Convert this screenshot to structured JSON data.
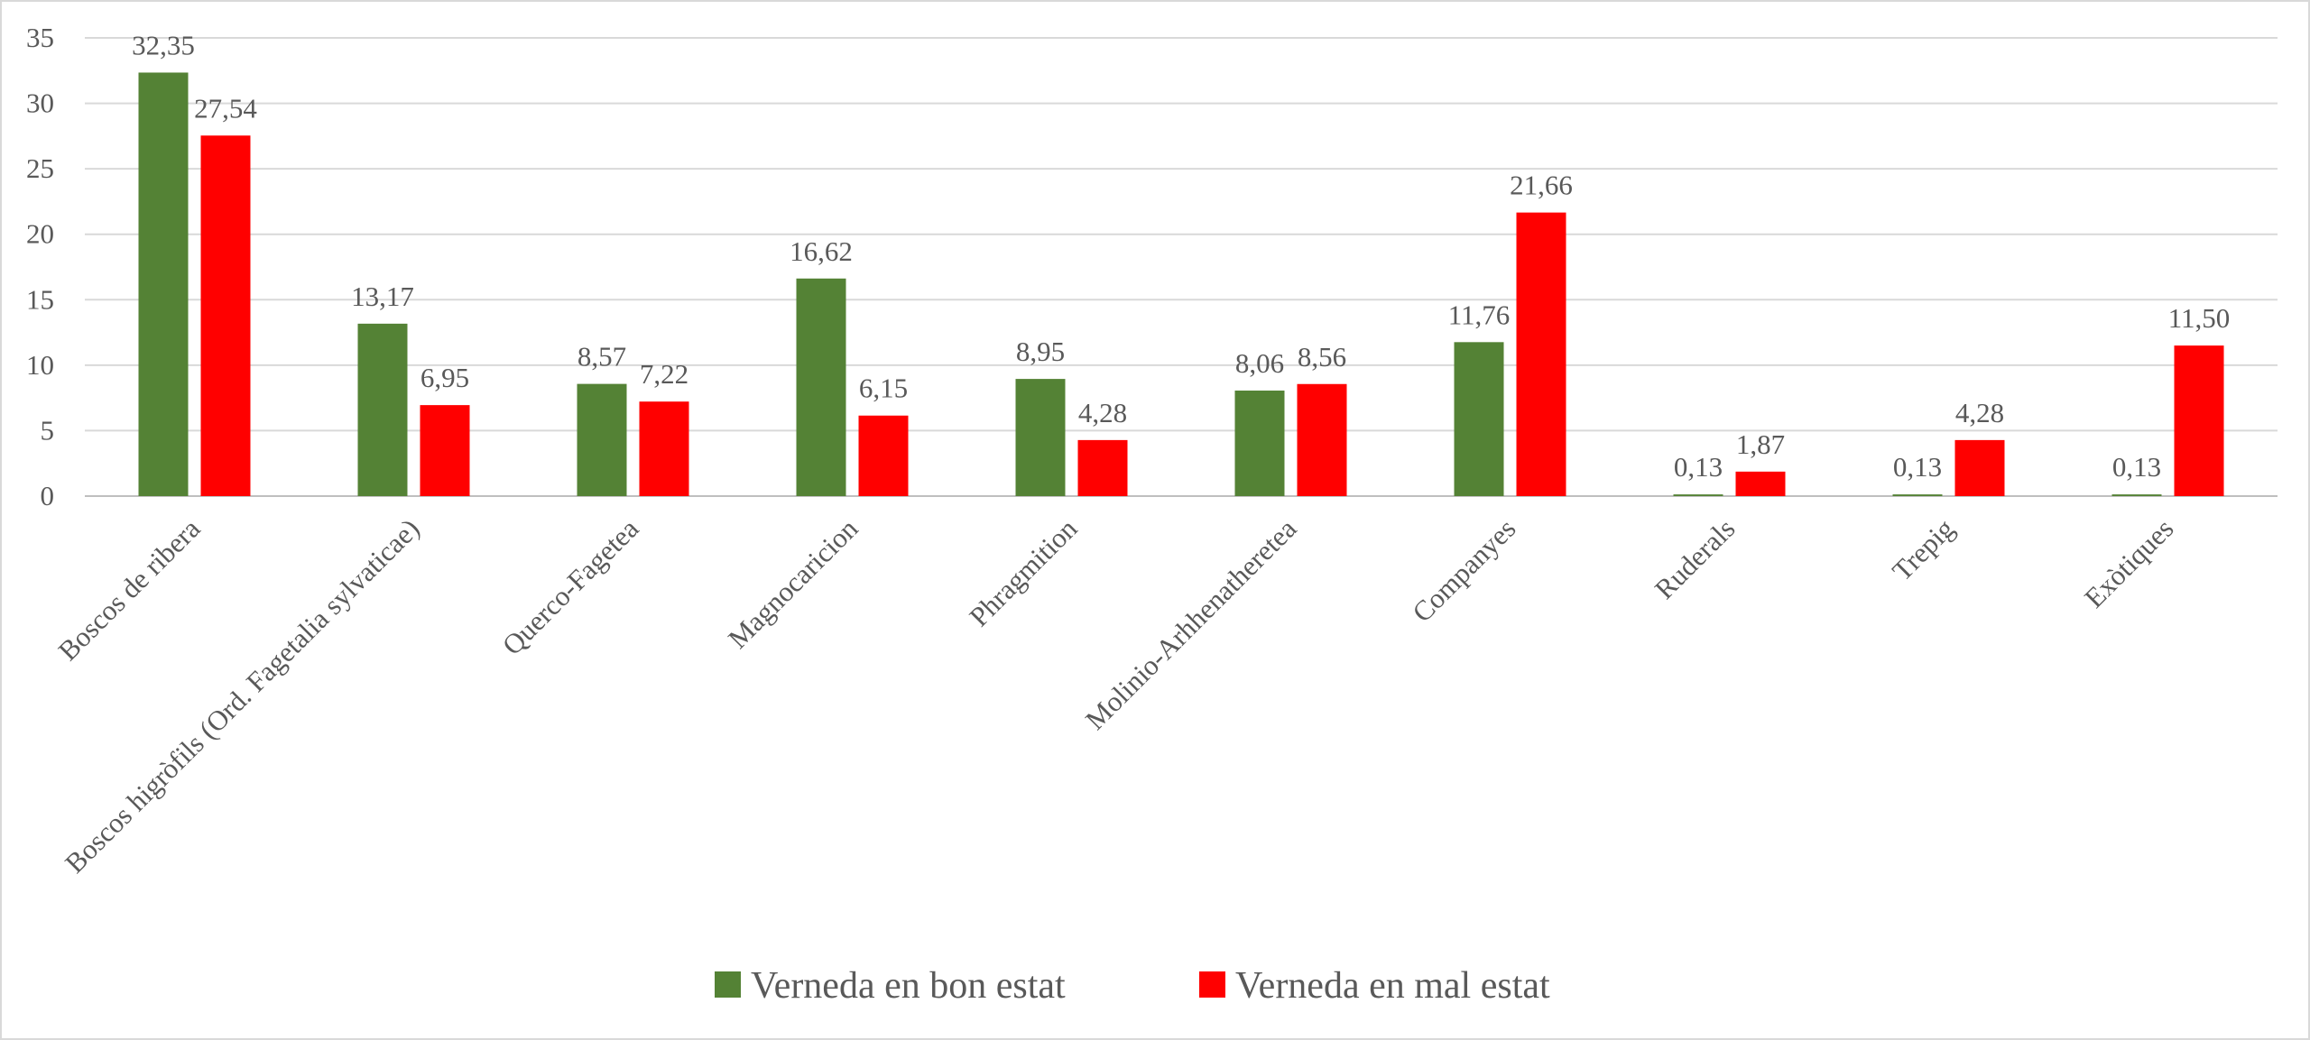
{
  "chart_data": {
    "type": "bar",
    "title": "",
    "xlabel": "",
    "ylabel": "",
    "ylim": [
      0,
      35
    ],
    "yticks": [
      0,
      5,
      10,
      15,
      20,
      25,
      30,
      35
    ],
    "ytick_labels": [
      "0",
      "5",
      "10",
      "15",
      "20",
      "25",
      "30",
      "35"
    ],
    "grid": true,
    "legend_position": "bottom",
    "categories": [
      "Boscos de ribera",
      "Boscos higròfils (Ord. Fagetalia sylvaticae)",
      "Querco-Fagetea",
      "Magnocaricion",
      "Phragmition",
      "Molinio-Arhhenatheretea",
      "Companyes",
      "Ruderals",
      "Trepig",
      "Exòtiques"
    ],
    "series": [
      {
        "name": "Verneda en bon estat",
        "color": "#548235",
        "values": [
          32.35,
          13.17,
          8.57,
          16.62,
          8.95,
          8.06,
          11.76,
          0.13,
          0.13,
          0.13
        ],
        "labels": [
          "32,35",
          "13,17",
          "8,57",
          "16,62",
          "8,95",
          "8,06",
          "11,76",
          "0,13",
          "0,13",
          "0,13"
        ]
      },
      {
        "name": "Verneda en mal estat",
        "color": "#ff0000",
        "values": [
          27.54,
          6.95,
          7.22,
          6.15,
          4.28,
          8.56,
          21.66,
          1.87,
          4.28,
          11.5
        ],
        "labels": [
          "27,54",
          "6,95",
          "7,22",
          "6,15",
          "4,28",
          "8,56",
          "21,66",
          "1,87",
          "4,28",
          "11,50"
        ]
      }
    ]
  }
}
